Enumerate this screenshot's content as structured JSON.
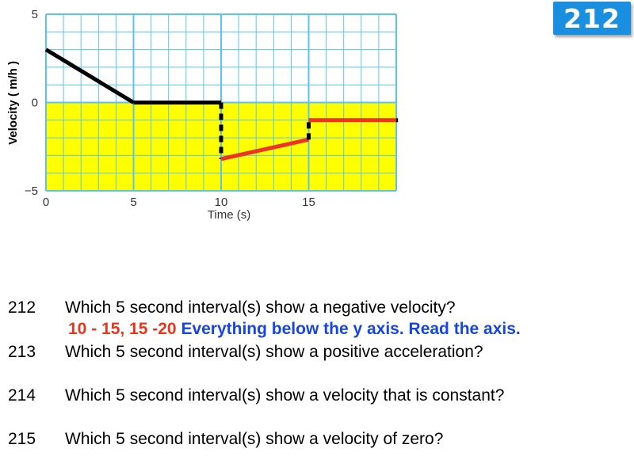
{
  "badge": {
    "number": "212"
  },
  "chart_data": {
    "type": "line",
    "xlabel": "Time (s)",
    "ylabel": "Velocity ( m/h )",
    "xlim": [
      0,
      20
    ],
    "ylim": [
      -5,
      5
    ],
    "x_ticks": [
      "0",
      "5",
      "10",
      "15"
    ],
    "y_ticks": [
      "5",
      "0",
      "−5"
    ],
    "grid": true,
    "colors": {
      "grid": "#5bc4ee",
      "below_zero_fill": "#ffff00",
      "line": "#000000",
      "highlight": "#ee3322"
    },
    "segments": [
      {
        "x": [
          0,
          5
        ],
        "y": [
          3,
          0
        ],
        "color": "#000000",
        "style": "solid"
      },
      {
        "x": [
          5,
          10
        ],
        "y": [
          0,
          0
        ],
        "color": "#000000",
        "style": "solid"
      },
      {
        "x": [
          10,
          10
        ],
        "y": [
          0,
          -3.2
        ],
        "color": "#000000",
        "style": "dashed"
      },
      {
        "x": [
          10,
          15
        ],
        "y": [
          -3.2,
          -2.1
        ],
        "color": "#ee3322",
        "style": "solid"
      },
      {
        "x": [
          15,
          15
        ],
        "y": [
          -2.1,
          -1
        ],
        "color": "#000000",
        "style": "dashed"
      },
      {
        "x": [
          15,
          20
        ],
        "y": [
          -1,
          -1
        ],
        "color": "#ee3322",
        "style": "solid"
      },
      {
        "x": [
          20,
          20.1
        ],
        "y": [
          -1,
          -1
        ],
        "color": "#000000",
        "style": "solid"
      }
    ]
  },
  "questions": [
    {
      "number": "212",
      "text": "Which 5 second interval(s) show a negative velocity?"
    },
    {
      "number": "213",
      "text": "Which 5 second interval(s) show a positive acceleration?"
    },
    {
      "number": "214",
      "text": "Which 5 second interval(s) show a velocity that is constant?"
    },
    {
      "number": "215",
      "text": "Which 5 second interval(s) show a velocity of zero?"
    }
  ],
  "answer": {
    "red_part": "10 - 15, 15 -20",
    "blue_part": "Everything below the y axis. Read the axis."
  }
}
